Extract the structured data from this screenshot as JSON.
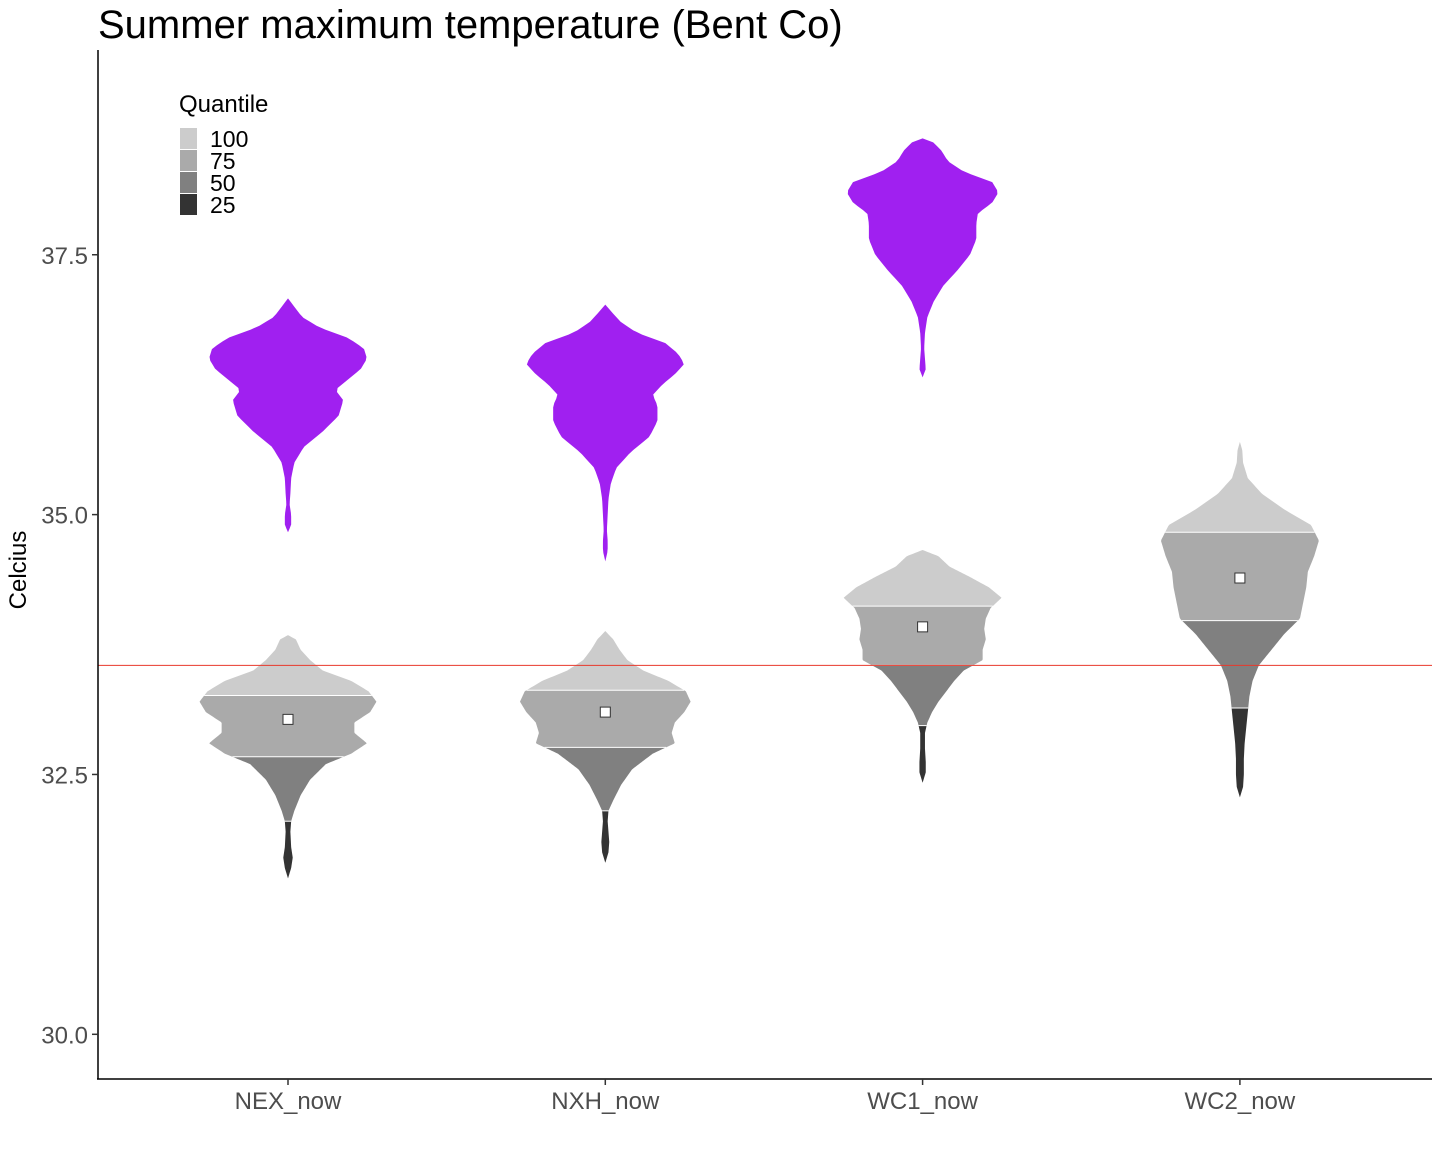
{
  "chart_data": {
    "type": "violin",
    "title": "Summer maximum temperature (Bent Co)",
    "xlabel": "",
    "ylabel": "Celcius",
    "categories": [
      "NEX_now",
      "NXH_now",
      "WC1_now",
      "WC2_now"
    ],
    "ylim": [
      29.57,
      39.47
    ],
    "yticks": [
      30.0,
      32.5,
      35.0,
      37.5
    ],
    "ytick_labels": [
      "30.0",
      "32.5",
      "35.0",
      "37.5"
    ],
    "reference_line": {
      "y": 33.55,
      "color": "#e8382b"
    },
    "legend": {
      "title": "Quantile",
      "position": "top-left",
      "items": [
        {
          "label": "100",
          "color": "#cccccc"
        },
        {
          "label": "75",
          "color": "#aaaaaa"
        },
        {
          "label": "50",
          "color": "#808080"
        },
        {
          "label": "25",
          "color": "#333333"
        }
      ]
    },
    "quantile_colors": [
      "#333333",
      "#808080",
      "#aaaaaa",
      "#cccccc"
    ],
    "future_color": "#a020f0",
    "series": [
      {
        "category": "NEX_now",
        "current": {
          "quartiles": [
            32.05,
            32.67,
            33.26
          ],
          "mean": 33.03,
          "profile": [
            [
              31.5,
              0.0
            ],
            [
              31.6,
              0.02
            ],
            [
              31.7,
              0.03
            ],
            [
              31.8,
              0.02
            ],
            [
              31.95,
              0.015
            ],
            [
              32.05,
              0.02
            ],
            [
              32.15,
              0.04
            ],
            [
              32.3,
              0.08
            ],
            [
              32.45,
              0.14
            ],
            [
              32.6,
              0.24
            ],
            [
              32.7,
              0.4
            ],
            [
              32.8,
              0.5
            ],
            [
              32.9,
              0.42
            ],
            [
              33.0,
              0.42
            ],
            [
              33.1,
              0.52
            ],
            [
              33.2,
              0.56
            ],
            [
              33.3,
              0.51
            ],
            [
              33.4,
              0.4
            ],
            [
              33.5,
              0.22
            ],
            [
              33.6,
              0.14
            ],
            [
              33.7,
              0.08
            ],
            [
              33.8,
              0.05
            ],
            [
              33.84,
              0.0
            ]
          ]
        },
        "future": {
          "profile": [
            [
              34.83,
              0.0
            ],
            [
              34.9,
              0.02
            ],
            [
              35.0,
              0.02
            ],
            [
              35.1,
              0.01
            ],
            [
              35.2,
              0.015
            ],
            [
              35.35,
              0.02
            ],
            [
              35.5,
              0.04
            ],
            [
              35.65,
              0.1
            ],
            [
              35.8,
              0.22
            ],
            [
              35.95,
              0.32
            ],
            [
              36.1,
              0.35
            ],
            [
              36.2,
              0.3
            ],
            [
              36.3,
              0.38
            ],
            [
              36.4,
              0.46
            ],
            [
              36.5,
              0.5
            ],
            [
              36.6,
              0.48
            ],
            [
              36.7,
              0.38
            ],
            [
              36.8,
              0.2
            ],
            [
              36.9,
              0.09
            ],
            [
              37.0,
              0.04
            ],
            [
              37.08,
              0.0
            ]
          ]
        }
      },
      {
        "category": "NXH_now",
        "current": {
          "quartiles": [
            32.15,
            32.76,
            33.31
          ],
          "mean": 33.1,
          "profile": [
            [
              31.65,
              0.0
            ],
            [
              31.75,
              0.02
            ],
            [
              31.85,
              0.025
            ],
            [
              31.95,
              0.02
            ],
            [
              32.05,
              0.015
            ],
            [
              32.15,
              0.02
            ],
            [
              32.25,
              0.05
            ],
            [
              32.4,
              0.1
            ],
            [
              32.55,
              0.17
            ],
            [
              32.7,
              0.3
            ],
            [
              32.8,
              0.44
            ],
            [
              32.9,
              0.42
            ],
            [
              33.0,
              0.44
            ],
            [
              33.1,
              0.5
            ],
            [
              33.2,
              0.54
            ],
            [
              33.3,
              0.51
            ],
            [
              33.4,
              0.4
            ],
            [
              33.5,
              0.24
            ],
            [
              33.6,
              0.14
            ],
            [
              33.7,
              0.09
            ],
            [
              33.8,
              0.05
            ],
            [
              33.88,
              0.0
            ]
          ]
        },
        "future": {
          "profile": [
            [
              34.55,
              0.0
            ],
            [
              34.65,
              0.015
            ],
            [
              34.75,
              0.015
            ],
            [
              34.85,
              0.01
            ],
            [
              35.0,
              0.015
            ],
            [
              35.15,
              0.02
            ],
            [
              35.3,
              0.035
            ],
            [
              35.45,
              0.07
            ],
            [
              35.6,
              0.16
            ],
            [
              35.75,
              0.28
            ],
            [
              35.9,
              0.33
            ],
            [
              36.05,
              0.33
            ],
            [
              36.15,
              0.3
            ],
            [
              36.25,
              0.36
            ],
            [
              36.35,
              0.44
            ],
            [
              36.45,
              0.5
            ],
            [
              36.55,
              0.46
            ],
            [
              36.65,
              0.38
            ],
            [
              36.75,
              0.2
            ],
            [
              36.85,
              0.1
            ],
            [
              36.95,
              0.04
            ],
            [
              37.02,
              0.0
            ]
          ]
        }
      },
      {
        "category": "WC1_now",
        "current": {
          "quartiles": [
            32.97,
            33.55,
            34.12
          ],
          "mean": 33.92,
          "profile": [
            [
              32.42,
              0.0
            ],
            [
              32.52,
              0.02
            ],
            [
              32.62,
              0.02
            ],
            [
              32.75,
              0.015
            ],
            [
              32.9,
              0.015
            ],
            [
              33.0,
              0.03
            ],
            [
              33.1,
              0.06
            ],
            [
              33.2,
              0.1
            ],
            [
              33.3,
              0.15
            ],
            [
              33.4,
              0.2
            ],
            [
              33.5,
              0.26
            ],
            [
              33.6,
              0.38
            ],
            [
              33.7,
              0.38
            ],
            [
              33.8,
              0.4
            ],
            [
              33.9,
              0.39
            ],
            [
              34.0,
              0.4
            ],
            [
              34.1,
              0.43
            ],
            [
              34.2,
              0.5
            ],
            [
              34.3,
              0.42
            ],
            [
              34.4,
              0.3
            ],
            [
              34.5,
              0.17
            ],
            [
              34.6,
              0.1
            ],
            [
              34.66,
              0.0
            ]
          ]
        },
        "future": {
          "profile": [
            [
              36.32,
              0.0
            ],
            [
              36.4,
              0.02
            ],
            [
              36.5,
              0.015
            ],
            [
              36.6,
              0.01
            ],
            [
              36.75,
              0.015
            ],
            [
              36.9,
              0.03
            ],
            [
              37.05,
              0.07
            ],
            [
              37.2,
              0.13
            ],
            [
              37.35,
              0.22
            ],
            [
              37.5,
              0.3
            ],
            [
              37.65,
              0.34
            ],
            [
              37.8,
              0.34
            ],
            [
              37.9,
              0.35
            ],
            [
              38.0,
              0.44
            ],
            [
              38.1,
              0.48
            ],
            [
              38.2,
              0.44
            ],
            [
              38.3,
              0.26
            ],
            [
              38.4,
              0.16
            ],
            [
              38.5,
              0.12
            ],
            [
              38.58,
              0.07
            ],
            [
              38.62,
              0.0
            ]
          ]
        }
      },
      {
        "category": "WC2_now",
        "current": {
          "quartiles": [
            33.14,
            33.98,
            34.83
          ],
          "mean": 34.39,
          "profile": [
            [
              32.28,
              0.0
            ],
            [
              32.38,
              0.02
            ],
            [
              32.5,
              0.025
            ],
            [
              32.65,
              0.025
            ],
            [
              32.8,
              0.03
            ],
            [
              32.95,
              0.04
            ],
            [
              33.1,
              0.05
            ],
            [
              33.25,
              0.06
            ],
            [
              33.4,
              0.08
            ],
            [
              33.55,
              0.12
            ],
            [
              33.7,
              0.2
            ],
            [
              33.85,
              0.28
            ],
            [
              34.0,
              0.38
            ],
            [
              34.15,
              0.4
            ],
            [
              34.3,
              0.42
            ],
            [
              34.45,
              0.43
            ],
            [
              34.6,
              0.47
            ],
            [
              34.75,
              0.5
            ],
            [
              34.9,
              0.45
            ],
            [
              35.05,
              0.28
            ],
            [
              35.2,
              0.14
            ],
            [
              35.35,
              0.05
            ],
            [
              35.5,
              0.02
            ],
            [
              35.62,
              0.015
            ],
            [
              35.7,
              0.0
            ]
          ]
        }
      }
    ]
  }
}
